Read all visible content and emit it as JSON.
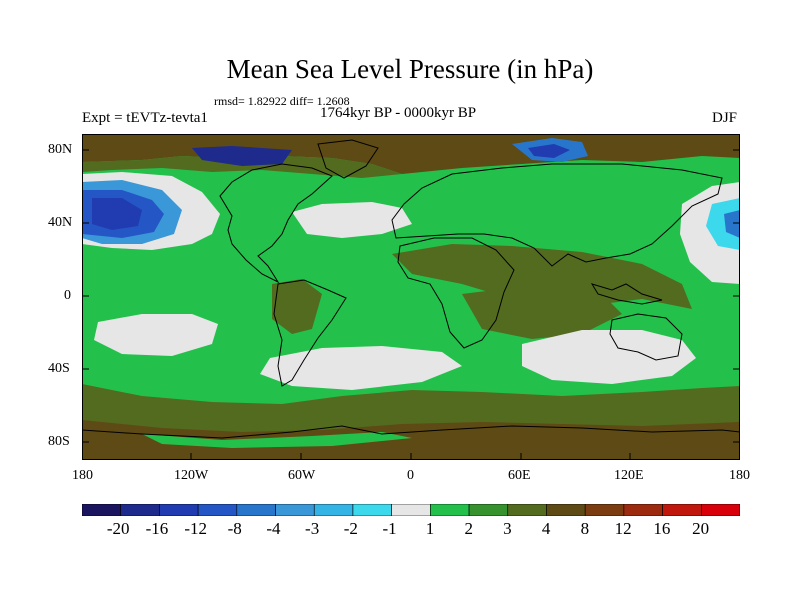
{
  "header": {
    "title": "Mean Sea Level Pressure (in hPa)",
    "stats": "rmsd= 1.82922 diff= 1.2608",
    "experiment": "Expt = tEVTz-tevta1",
    "period": "1764kyr BP - 0000kyr BP",
    "season": "DJF"
  },
  "map": {
    "lat_labels": [
      "80N",
      "40N",
      "0",
      "40S",
      "80S"
    ],
    "lon_labels": [
      "180",
      "120W",
      "60W",
      "0",
      "60E",
      "120E",
      "180"
    ]
  },
  "colorbar": {
    "labels": [
      "-20",
      "-16",
      "-12",
      "-8",
      "-4",
      "-3",
      "-2",
      "-1",
      "1",
      "2",
      "3",
      "4",
      "8",
      "12",
      "16",
      "20"
    ],
    "colors": [
      "#1b1560",
      "#1e2a8c",
      "#203cb0",
      "#2456c6",
      "#2876cc",
      "#3a98d8",
      "#33b4e4",
      "#3cd8ec",
      "#e6e6e6",
      "#23c14c",
      "#35922c",
      "#536b1f",
      "#5e4a14",
      "#7a3c10",
      "#9c2a0e",
      "#c0180c",
      "#d8000a"
    ]
  }
}
